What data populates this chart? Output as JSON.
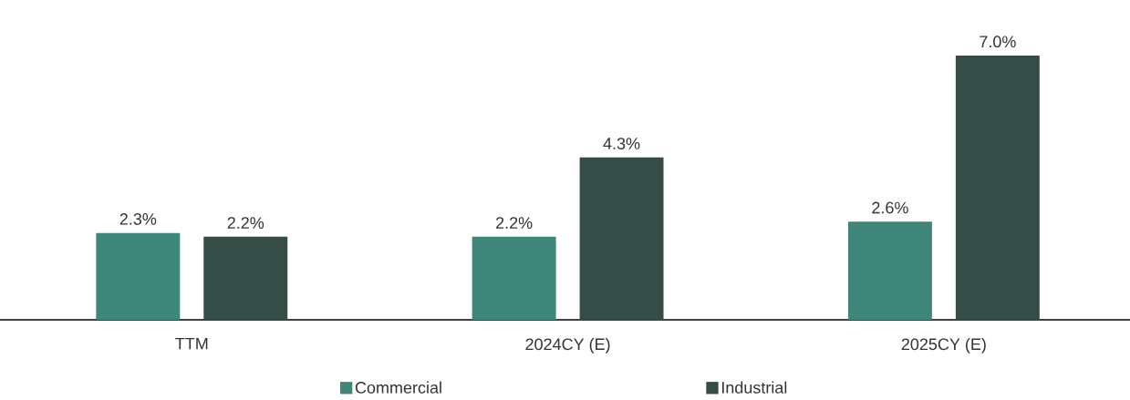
{
  "chart_data": {
    "type": "bar",
    "categories": [
      "TTM",
      "2024CY (E)",
      "2025CY (E)"
    ],
    "series": [
      {
        "name": "Commercial",
        "color": "#3f877a",
        "values": [
          2.3,
          2.2,
          2.6
        ],
        "value_labels": [
          "2.3%",
          "2.2%",
          "2.6%"
        ]
      },
      {
        "name": "Industrial",
        "color": "#364c46",
        "values": [
          2.2,
          4.3,
          7.0
        ],
        "value_labels": [
          "2.2%",
          "4.3%",
          "7.0%"
        ]
      }
    ],
    "legend": "bottom"
  }
}
